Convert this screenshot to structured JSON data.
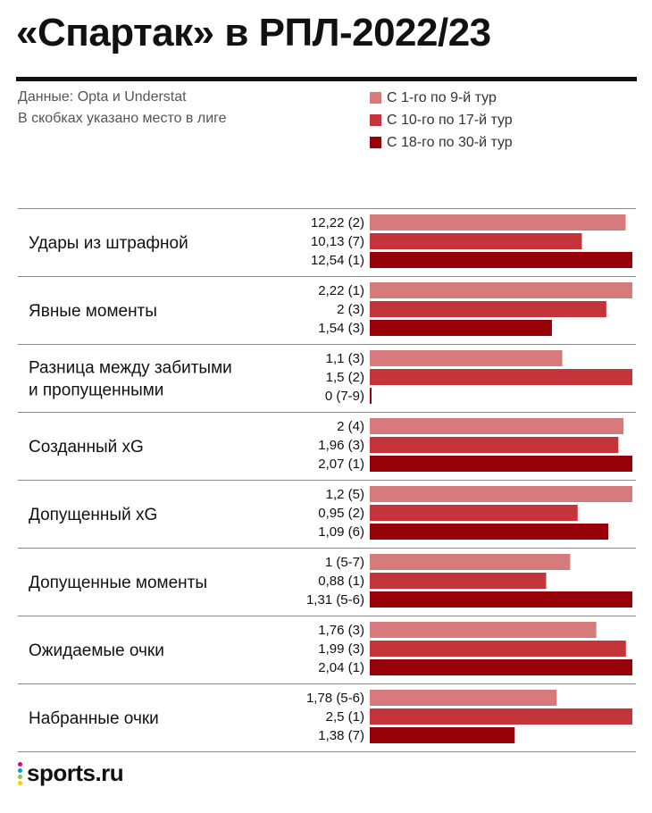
{
  "header": {
    "title": "«Спартак» в РПЛ-2022/23",
    "source": "Данные: Opta и Understat",
    "note": "В скобках указано место в лиге"
  },
  "colors": {
    "series1": "#d67a7c",
    "series2": "#c5343a",
    "series3": "#960208",
    "rule": "#111111",
    "divider": "#888888"
  },
  "chart_data": {
    "type": "bar",
    "orientation": "horizontal",
    "grouped": true,
    "title": "«Спартак» в РПЛ-2022/23",
    "legend_position": "top-right",
    "grid": false,
    "value_scale": "independent per category",
    "series": [
      {
        "name": "С 1-го по 9-й тур"
      },
      {
        "name": "С 10-го по 17-й тур"
      },
      {
        "name": "С 18-го по 30-й тур"
      }
    ],
    "categories": [
      {
        "label": "Удары из штрафной",
        "values": [
          12.22,
          10.13,
          12.54
        ],
        "labels": [
          "12,22 (2)",
          "10,13 (7)",
          "12,54 (1)"
        ]
      },
      {
        "label": "Явные моменты",
        "values": [
          2.22,
          2,
          1.54
        ],
        "labels": [
          "2,22 (1)",
          "2 (3)",
          "1,54 (3)"
        ]
      },
      {
        "label": "Разница между забитыми и пропущенными",
        "lines": [
          "Разница между забитыми",
          "и пропущенными"
        ],
        "values": [
          1.1,
          1.5,
          0
        ],
        "labels": [
          "1,1 (3)",
          "1,5 (2)",
          "0 (7-9)"
        ]
      },
      {
        "label": "Созданный xG",
        "values": [
          2,
          1.96,
          2.07
        ],
        "labels": [
          "2 (4)",
          "1,96 (3)",
          "2,07 (1)"
        ]
      },
      {
        "label": "Допущенный xG",
        "values": [
          1.2,
          0.95,
          1.09
        ],
        "labels": [
          "1,2 (5)",
          "0,95 (2)",
          "1,09 (6)"
        ]
      },
      {
        "label": "Допущенные моменты",
        "values": [
          1,
          0.88,
          1.31
        ],
        "labels": [
          "1 (5-7)",
          "0,88 (1)",
          "1,31 (5-6)"
        ]
      },
      {
        "label": "Ожидаемые очки",
        "values": [
          1.76,
          1.99,
          2.04
        ],
        "labels": [
          "1,76 (3)",
          "1,99 (3)",
          "2,04 (1)"
        ]
      },
      {
        "label": "Набранные очки",
        "values": [
          1.78,
          2.5,
          1.38
        ],
        "labels": [
          "1,78 (5-6)",
          "2,5 (1)",
          "1,38 (7)"
        ]
      }
    ]
  },
  "footer": {
    "logo_text": "sports.ru",
    "logo_dot_colors": [
      "#e6007e",
      "#00a0e3",
      "#8dc63f",
      "#ffcc00"
    ]
  }
}
